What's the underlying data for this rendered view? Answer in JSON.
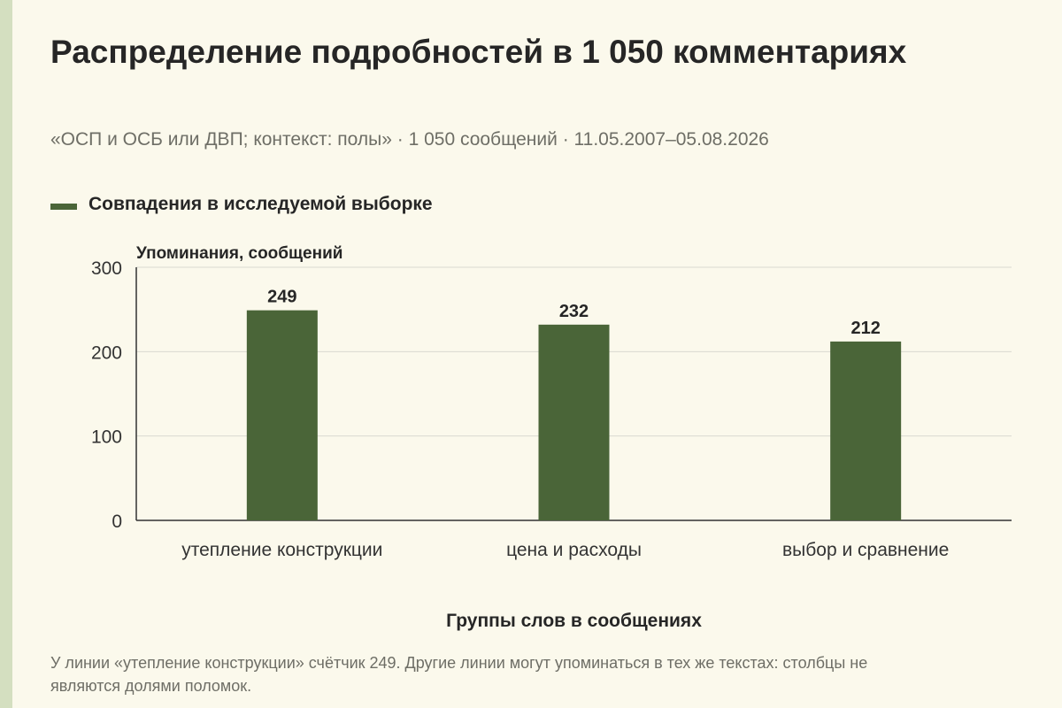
{
  "title": "Распределение подробностей в 1 050 комментариях",
  "subtitle": "«ОСП и ОСБ или ДВП; контекст: полы» · 1 050 сообщений · 11.05.2007–05.08.2026",
  "footnote": "У линии «утепление конструкции» счётчик 249. Другие линии могут упоминаться в тех же текстах: столбцы не являются долями поломок.",
  "colors": {
    "bar": "#4a6538",
    "accent": "#d4dfc0",
    "background": "#fbf9ec"
  },
  "chart_data": {
    "type": "bar",
    "categories": [
      "утепление конструкции",
      "цена и расходы",
      "выбор и сравнение"
    ],
    "series": [
      {
        "name": "Совпадения в исследуемой выборке",
        "values": [
          249,
          232,
          212
        ]
      }
    ],
    "ylabel": "Упоминания, сообщений",
    "xlabel": "Группы слов в сообщениях",
    "ylim": [
      0,
      300
    ],
    "yticks": [
      0,
      100,
      200,
      300
    ],
    "data_labels": [
      "249",
      "232",
      "212"
    ],
    "grid": true,
    "legend_position": "top-left"
  }
}
